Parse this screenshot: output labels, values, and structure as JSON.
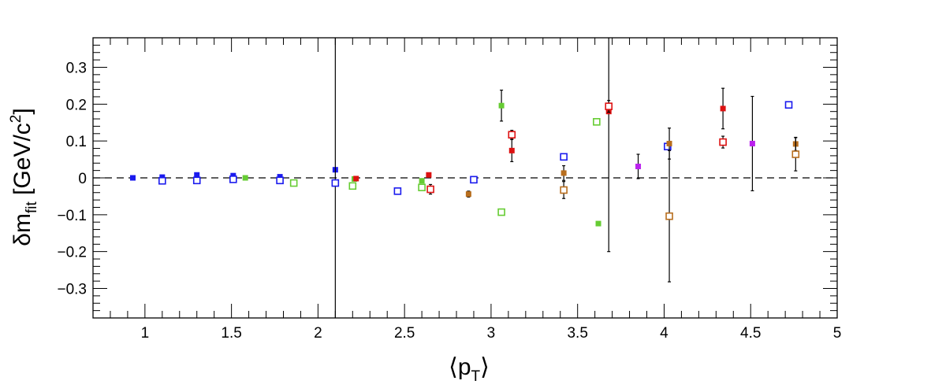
{
  "chart_data": {
    "type": "scatter",
    "xlabel": "⟨pT⟩",
    "ylabel": "δmfit [GeV/c2]",
    "ylabel_parts": {
      "sym": "δm",
      "sub": "fit",
      "unit_open": " [GeV/c",
      "sup": "2",
      "unit_close": "]"
    },
    "xlabel_parts": {
      "open": "⟨p",
      "sub": "T",
      "close": "⟩"
    },
    "xlim": [
      0.7,
      5.0
    ],
    "ylim": [
      -0.38,
      0.38
    ],
    "x_ticks": [
      1,
      1.5,
      2,
      2.5,
      3,
      3.5,
      4,
      4.5,
      5
    ],
    "x_tick_labels": [
      "1",
      "1.5",
      "2",
      "2.5",
      "3",
      "3.5",
      "4",
      "4.5",
      "5"
    ],
    "y_ticks": [
      -0.3,
      -0.2,
      -0.1,
      0,
      0.1,
      0.2,
      0.3
    ],
    "y_tick_labels": [
      "−0.3",
      "−0.2",
      "−0.1",
      "0",
      "0.1",
      "0.2",
      "0.3"
    ],
    "reference_line_y": 0,
    "grid": false,
    "series": [
      {
        "color": "#1a1aee",
        "filled": true,
        "points": [
          {
            "x": 0.93,
            "y": 0.0,
            "err": 0
          },
          {
            "x": 1.1,
            "y": 0.002,
            "err": 0
          },
          {
            "x": 1.3,
            "y": 0.008,
            "err": 0
          },
          {
            "x": 1.51,
            "y": 0.006,
            "err": 0
          },
          {
            "x": 1.78,
            "y": 0.003,
            "err": 0
          },
          {
            "x": 2.1,
            "y": 0.022,
            "err": 0
          }
        ]
      },
      {
        "color": "#1a1aee",
        "filled": false,
        "points": [
          {
            "x": 1.1,
            "y": -0.008,
            "err": 0
          },
          {
            "x": 1.3,
            "y": -0.007,
            "err": 0
          },
          {
            "x": 1.51,
            "y": -0.004,
            "err": 0
          },
          {
            "x": 1.78,
            "y": -0.007,
            "err": 0
          },
          {
            "x": 2.1,
            "y": -0.014,
            "err": 0.55
          },
          {
            "x": 2.46,
            "y": -0.036,
            "err": 0
          },
          {
            "x": 2.9,
            "y": -0.005,
            "err": 0
          },
          {
            "x": 3.42,
            "y": 0.057,
            "err": 0
          },
          {
            "x": 4.02,
            "y": 0.085,
            "err": 0
          },
          {
            "x": 4.72,
            "y": 0.198,
            "err": 0
          }
        ]
      },
      {
        "color": "#66cc33",
        "filled": true,
        "points": [
          {
            "x": 1.58,
            "y": 0.0,
            "err": 0
          },
          {
            "x": 2.21,
            "y": -0.003,
            "err": 0
          },
          {
            "x": 2.6,
            "y": -0.008,
            "err": 0
          },
          {
            "x": 3.06,
            "y": 0.196,
            "err": 0.042
          },
          {
            "x": 3.62,
            "y": -0.124,
            "err": 0
          }
        ]
      },
      {
        "color": "#66cc33",
        "filled": false,
        "points": [
          {
            "x": 1.86,
            "y": -0.014,
            "err": 0
          },
          {
            "x": 2.2,
            "y": -0.022,
            "err": 0
          },
          {
            "x": 2.6,
            "y": -0.026,
            "err": 0
          },
          {
            "x": 3.06,
            "y": -0.093,
            "err": 0
          },
          {
            "x": 3.61,
            "y": 0.152,
            "err": 0.008
          }
        ]
      },
      {
        "color": "#dd1111",
        "filled": true,
        "points": [
          {
            "x": 2.22,
            "y": -0.002,
            "err": 0
          },
          {
            "x": 2.64,
            "y": 0.008,
            "err": 0.005
          },
          {
            "x": 3.12,
            "y": 0.074,
            "err": 0.03
          },
          {
            "x": 3.68,
            "y": 0.18,
            "err": 0.38
          },
          {
            "x": 4.34,
            "y": 0.188,
            "err": 0.055
          }
        ]
      },
      {
        "color": "#dd1111",
        "filled": false,
        "points": [
          {
            "x": 2.65,
            "y": -0.031,
            "err": 0.013
          },
          {
            "x": 3.12,
            "y": 0.117,
            "err": 0.012
          },
          {
            "x": 3.68,
            "y": 0.194,
            "err": 0.016
          },
          {
            "x": 4.34,
            "y": 0.097,
            "err": 0.016
          }
        ]
      },
      {
        "color": "#b86e1e",
        "filled": true,
        "points": [
          {
            "x": 2.87,
            "y": -0.044,
            "err": 0.008
          },
          {
            "x": 3.42,
            "y": 0.013,
            "err": 0.02
          },
          {
            "x": 4.03,
            "y": 0.093,
            "err": 0.042
          },
          {
            "x": 4.76,
            "y": 0.092,
            "err": 0.018
          }
        ]
      },
      {
        "color": "#b86e1e",
        "filled": false,
        "points": [
          {
            "x": 3.42,
            "y": -0.033,
            "err": 0.023
          },
          {
            "x": 4.03,
            "y": -0.104,
            "err": 0.178
          },
          {
            "x": 4.76,
            "y": 0.064,
            "err": 0.045
          }
        ]
      },
      {
        "color": "#bb22ee",
        "filled": true,
        "points": [
          {
            "x": 3.85,
            "y": 0.031,
            "err": 0.033
          },
          {
            "x": 4.51,
            "y": 0.093,
            "err": 0.128
          }
        ]
      }
    ]
  }
}
